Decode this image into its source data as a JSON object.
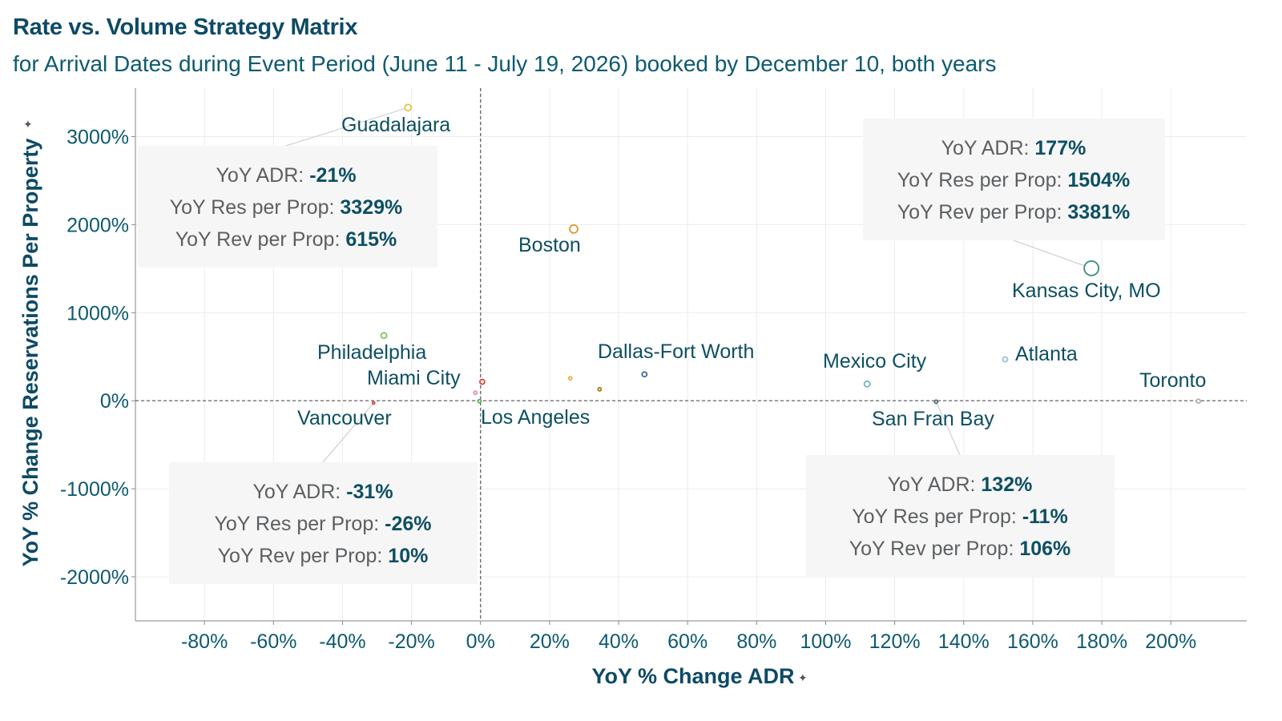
{
  "header": {
    "title": "Rate vs. Volume Strategy Matrix",
    "subtitle": "for Arrival Dates during Event Period (June 11 - July 19, 2026) booked by December 10, both years"
  },
  "chart_data": {
    "type": "scatter",
    "title": "Rate vs. Volume Strategy Matrix",
    "subtitle": "for Arrival Dates during Event Period (June 11 - July 19, 2026) booked by December 10, both years",
    "xlabel": "YoY % Change ADR",
    "ylabel": "YoY % Change Reservations Per Property",
    "xlim": [
      -100,
      222
    ],
    "ylim": [
      -2500,
      3550
    ],
    "x_ticks": [
      -80,
      -60,
      -40,
      -20,
      0,
      20,
      40,
      60,
      80,
      100,
      120,
      140,
      160,
      180,
      200
    ],
    "x_tick_labels": [
      "-80%",
      "-60%",
      "-40%",
      "-20%",
      "0%",
      "20%",
      "40%",
      "60%",
      "80%",
      "100%",
      "120%",
      "140%",
      "160%",
      "180%",
      "200%"
    ],
    "y_ticks": [
      -2000,
      -1000,
      0,
      1000,
      2000,
      3000
    ],
    "y_tick_labels": [
      "-2000%",
      "-1000%",
      "0%",
      "1000%",
      "2000%",
      "3000%"
    ],
    "grid": true,
    "reference_lines": {
      "x": 0,
      "y": 0,
      "style": "dashed"
    },
    "points": [
      {
        "name": "Guadalajara",
        "x": -21,
        "y": 3329,
        "color": "#e8c440",
        "size": 4
      },
      {
        "name": "Boston",
        "x": 27,
        "y": 1950,
        "color": "#e0962e",
        "size": 5
      },
      {
        "name": "Kansas City, MO",
        "x": 177,
        "y": 1504,
        "color": "#3a8a84",
        "size": 9
      },
      {
        "name": "Philadelphia",
        "x": -28,
        "y": 740,
        "color": "#7fc263",
        "size": 3.5
      },
      {
        "name": "Miami City",
        "x": -1.5,
        "y": 90,
        "color": "#e28fb0",
        "size": 2
      },
      {
        "name": "Dallas-Fort Worth",
        "x": 47.5,
        "y": 300,
        "color": "#3f6d94",
        "size": 3
      },
      {
        "name": "Mexico City",
        "x": 112,
        "y": 190,
        "color": "#74b6b8",
        "size": 3.5
      },
      {
        "name": "Atlanta",
        "x": 152,
        "y": 470,
        "color": "#9ec0dc",
        "size": 3
      },
      {
        "name": "Toronto",
        "x": 208,
        "y": -5,
        "color": "#b0b0b0",
        "size": 2.5
      },
      {
        "name": "Vancouver",
        "x": -31,
        "y": -26,
        "color": "#e04545",
        "size": 1.5
      },
      {
        "name": "Los Angeles",
        "x": -0.3,
        "y": -5,
        "color": "#52b052",
        "size": 2
      },
      {
        "name": "San Fran Bay",
        "x": 132,
        "y": -11,
        "color": "#5a6a76",
        "size": 2
      },
      {
        "name": "",
        "x": 0.5,
        "y": 215,
        "color": "#d94a3a",
        "size": 3
      },
      {
        "name": "",
        "x": 26,
        "y": 255,
        "color": "#e8b050",
        "size": 2
      },
      {
        "name": "",
        "x": 34.5,
        "y": 130,
        "color": "#a8781c",
        "size": 2
      }
    ],
    "annotations": [
      {
        "target": "Guadalajara",
        "adr": "-21%",
        "res": "3329%",
        "rev": "615%"
      },
      {
        "target": "Kansas City, MO",
        "adr": "177%",
        "res": "1504%",
        "rev": "3381%"
      },
      {
        "target": "Vancouver",
        "adr": "-31%",
        "res": "-26%",
        "rev": "10%"
      },
      {
        "target": "San Fran Bay",
        "adr": "132%",
        "res": "-11%",
        "rev": "106%"
      }
    ],
    "annotation_labels": {
      "adr": "YoY ADR: ",
      "res": "YoY Res per Prop: ",
      "rev": "YoY Rev per Prop: "
    }
  }
}
